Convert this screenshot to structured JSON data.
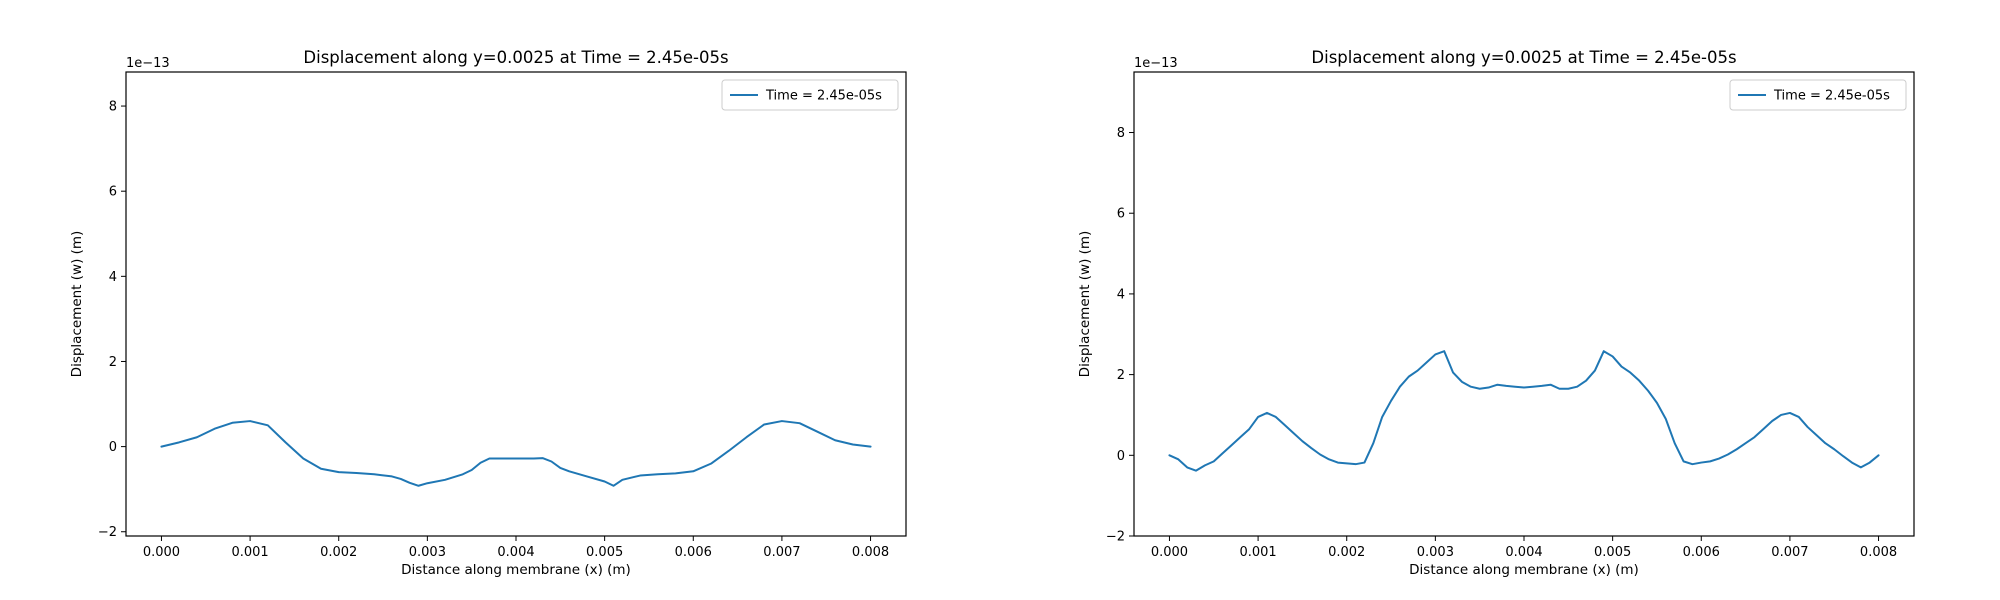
{
  "chart_data": [
    {
      "type": "line",
      "title": "Displacement along y=0.0025 at Time = 2.45e-05s",
      "xlabel": "Distance along membrane (x) (m)",
      "ylabel": "Displacement (w) (m)",
      "y_offset_text": "1e−13",
      "xlim": [
        -0.0004,
        0.0084
      ],
      "ylim": [
        -2.1,
        8.8
      ],
      "xticks": [
        0.0,
        0.001,
        0.002,
        0.003,
        0.004,
        0.005,
        0.006,
        0.007,
        0.008
      ],
      "xtick_labels": [
        "0.000",
        "0.001",
        "0.002",
        "0.003",
        "0.004",
        "0.005",
        "0.006",
        "0.007",
        "0.008"
      ],
      "yticks": [
        -2,
        0,
        2,
        4,
        6,
        8
      ],
      "ytick_labels": [
        "−2",
        "0",
        "2",
        "4",
        "6",
        "8"
      ],
      "legend": "top-right",
      "grid": false,
      "series": [
        {
          "name": "Time = 2.45e-05s",
          "color": "#1f77b4",
          "x": [
            0.0,
            0.0002,
            0.0004,
            0.0006,
            0.0008,
            0.001,
            0.0012,
            0.0014,
            0.0016,
            0.0018,
            0.002,
            0.0022,
            0.0024,
            0.0026,
            0.0027,
            0.0028,
            0.0029,
            0.003,
            0.0032,
            0.0034,
            0.0035,
            0.0036,
            0.0037,
            0.0038,
            0.004,
            0.0042,
            0.0043,
            0.0044,
            0.0045,
            0.0046,
            0.0048,
            0.005,
            0.0051,
            0.0052,
            0.0054,
            0.0056,
            0.0058,
            0.006,
            0.0062,
            0.0064,
            0.0066,
            0.0068,
            0.007,
            0.0072,
            0.0074,
            0.0076,
            0.0078,
            0.008
          ],
          "y": [
            0.0,
            0.1,
            0.22,
            0.42,
            0.56,
            0.6,
            0.5,
            0.1,
            -0.28,
            -0.52,
            -0.6,
            -0.62,
            -0.65,
            -0.7,
            -0.76,
            -0.85,
            -0.92,
            -0.86,
            -0.78,
            -0.65,
            -0.55,
            -0.38,
            -0.28,
            -0.28,
            -0.28,
            -0.28,
            -0.27,
            -0.35,
            -0.5,
            -0.58,
            -0.7,
            -0.82,
            -0.92,
            -0.78,
            -0.68,
            -0.65,
            -0.63,
            -0.58,
            -0.4,
            -0.1,
            0.22,
            0.52,
            0.6,
            0.55,
            0.35,
            0.15,
            0.05,
            0.0
          ]
        }
      ]
    },
    {
      "type": "line",
      "title": "Displacement along y=0.0025 at Time = 2.45e-05s",
      "xlabel": "Distance along membrane (x) (m)",
      "ylabel": "Displacement (w) (m)",
      "y_offset_text": "1e−13",
      "xlim": [
        -0.0004,
        0.0084
      ],
      "ylim": [
        -2.0,
        9.5
      ],
      "xticks": [
        0.0,
        0.001,
        0.002,
        0.003,
        0.004,
        0.005,
        0.006,
        0.007,
        0.008
      ],
      "xtick_labels": [
        "0.000",
        "0.001",
        "0.002",
        "0.003",
        "0.004",
        "0.005",
        "0.006",
        "0.007",
        "0.008"
      ],
      "yticks": [
        -2,
        0,
        2,
        4,
        6,
        8
      ],
      "ytick_labels": [
        "−2",
        "0",
        "2",
        "4",
        "6",
        "8"
      ],
      "legend": "top-right",
      "grid": false,
      "series": [
        {
          "name": "Time = 2.45e-05s",
          "color": "#1f77b4",
          "x": [
            0.0,
            0.0001,
            0.0002,
            0.0003,
            0.0004,
            0.0005,
            0.0006,
            0.0007,
            0.0008,
            0.0009,
            0.001,
            0.0011,
            0.0012,
            0.0013,
            0.0014,
            0.0015,
            0.0016,
            0.0017,
            0.0018,
            0.0019,
            0.002,
            0.0021,
            0.0022,
            0.0023,
            0.0024,
            0.0025,
            0.0026,
            0.0027,
            0.0028,
            0.0029,
            0.003,
            0.0031,
            0.0032,
            0.0033,
            0.0034,
            0.0035,
            0.0036,
            0.0037,
            0.0038,
            0.0039,
            0.004,
            0.0041,
            0.0042,
            0.0043,
            0.0044,
            0.0045,
            0.0046,
            0.0047,
            0.0048,
            0.0049,
            0.005,
            0.0051,
            0.0052,
            0.0053,
            0.0054,
            0.0055,
            0.0056,
            0.0057,
            0.0058,
            0.0059,
            0.006,
            0.0061,
            0.0062,
            0.0063,
            0.0064,
            0.0065,
            0.0066,
            0.0067,
            0.0068,
            0.0069,
            0.007,
            0.0071,
            0.0072,
            0.0073,
            0.0074,
            0.0075,
            0.0076,
            0.0077,
            0.0078,
            0.0079,
            0.008
          ],
          "y": [
            0.0,
            -0.1,
            -0.3,
            -0.38,
            -0.25,
            -0.15,
            0.05,
            0.25,
            0.45,
            0.65,
            0.95,
            1.05,
            0.95,
            0.75,
            0.55,
            0.35,
            0.18,
            0.02,
            -0.1,
            -0.18,
            -0.2,
            -0.22,
            -0.18,
            0.3,
            0.95,
            1.35,
            1.7,
            1.95,
            2.1,
            2.3,
            2.5,
            2.58,
            2.05,
            1.82,
            1.7,
            1.65,
            1.68,
            1.75,
            1.72,
            1.7,
            1.68,
            1.7,
            1.72,
            1.75,
            1.65,
            1.65,
            1.7,
            1.85,
            2.1,
            2.58,
            2.45,
            2.2,
            2.05,
            1.85,
            1.6,
            1.3,
            0.9,
            0.3,
            -0.15,
            -0.22,
            -0.18,
            -0.15,
            -0.08,
            0.02,
            0.15,
            0.3,
            0.45,
            0.65,
            0.85,
            1.0,
            1.05,
            0.95,
            0.7,
            0.5,
            0.3,
            0.15,
            -0.02,
            -0.18,
            -0.3,
            -0.18,
            0.0
          ]
        }
      ]
    }
  ]
}
